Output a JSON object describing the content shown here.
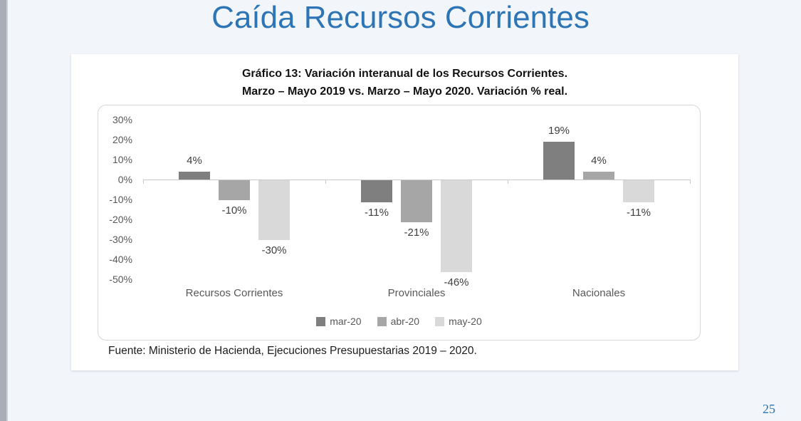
{
  "slide": {
    "title": "Caída Recursos Corrientes",
    "title_color": "#2e75b6",
    "background_color": "#f2f6fa",
    "edge_bar_color": "#a9aeb6",
    "page_number": "25"
  },
  "card": {
    "source_note": "Fuente: Ministerio de Hacienda, Ejecuciones Presupuestarias 2019 – 2020."
  },
  "chart_data": {
    "type": "bar",
    "title": "Gráfico 13: Variación interanual de los Recursos Corrientes.",
    "subtitle": "Marzo – Mayo 2019 vs. Marzo – Mayo 2020. Variación % real.",
    "categories": [
      "Recursos Corrientes",
      "Provinciales",
      "Nacionales"
    ],
    "series": [
      {
        "name": "mar-20",
        "color": "#7f7f7f",
        "values": [
          4,
          -11,
          19
        ]
      },
      {
        "name": "abr-20",
        "color": "#a6a6a6",
        "values": [
          -10,
          -21,
          4
        ]
      },
      {
        "name": "may-20",
        "color": "#d9d9d9",
        "values": [
          -30,
          -46,
          -11
        ]
      }
    ],
    "value_label_format": "{v}%",
    "ylim": [
      -50,
      30
    ],
    "ytick_step": 10,
    "ytick_format": "{v}%",
    "grid": false,
    "legend_position": "bottom",
    "axis_color": "#c9c9c9",
    "value_label_color": "#404040",
    "tick_label_color": "#595959"
  }
}
